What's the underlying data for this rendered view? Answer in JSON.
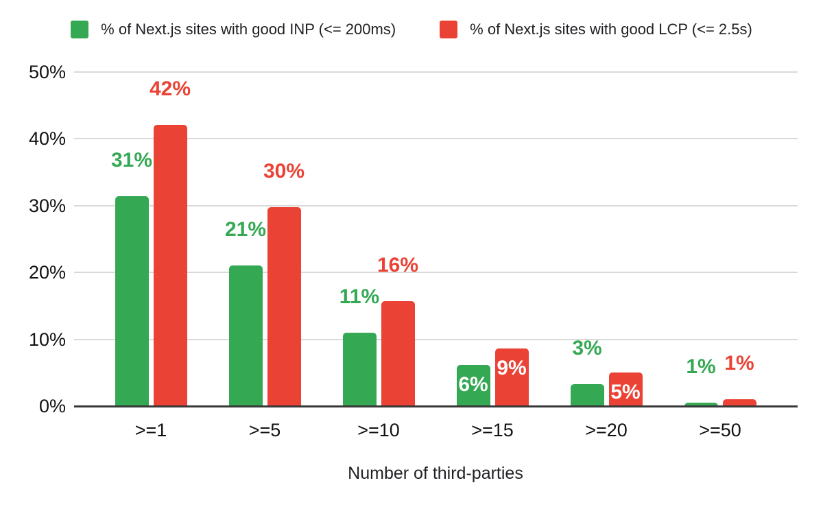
{
  "legend": {
    "items": [
      {
        "label": "% of Next.js sites with good INP (<= 200ms)",
        "color": "#34a853"
      },
      {
        "label": "% of Next.js sites with good LCP (<= 2.5s)",
        "color": "#ea4335"
      }
    ]
  },
  "chart_data": {
    "type": "bar",
    "categories": [
      ">=1",
      ">=5",
      ">=10",
      ">=15",
      ">=20",
      ">=50"
    ],
    "series": [
      {
        "name": "% of Next.js sites with good INP (<= 200ms)",
        "color": "#34a853",
        "values": [
          31.4,
          21.0,
          11.0,
          6.2,
          3.3,
          0.5
        ],
        "labels": [
          "31%",
          "21%",
          "11%",
          "6%",
          "3%",
          "1%"
        ],
        "label_placement": [
          "outside",
          "outside",
          "outside",
          "inside",
          "outside",
          "outside"
        ]
      },
      {
        "name": "% of Next.js sites with good LCP (<= 2.5s)",
        "color": "#ea4335",
        "values": [
          42.1,
          29.8,
          15.7,
          8.6,
          5.0,
          1.0
        ],
        "labels": [
          "42%",
          "30%",
          "16%",
          "9%",
          "5%",
          "1%"
        ],
        "label_placement": [
          "outside",
          "outside",
          "outside",
          "inside",
          "inside",
          "outside"
        ]
      }
    ],
    "title": "",
    "xlabel": "Number of third-parties",
    "ylabel": "",
    "ylim": [
      0,
      50
    ],
    "yticks": [
      "0%",
      "10%",
      "20%",
      "30%",
      "40%",
      "50%"
    ],
    "grid": true,
    "legend_position": "top",
    "inside_label_color": "#ffffff"
  }
}
